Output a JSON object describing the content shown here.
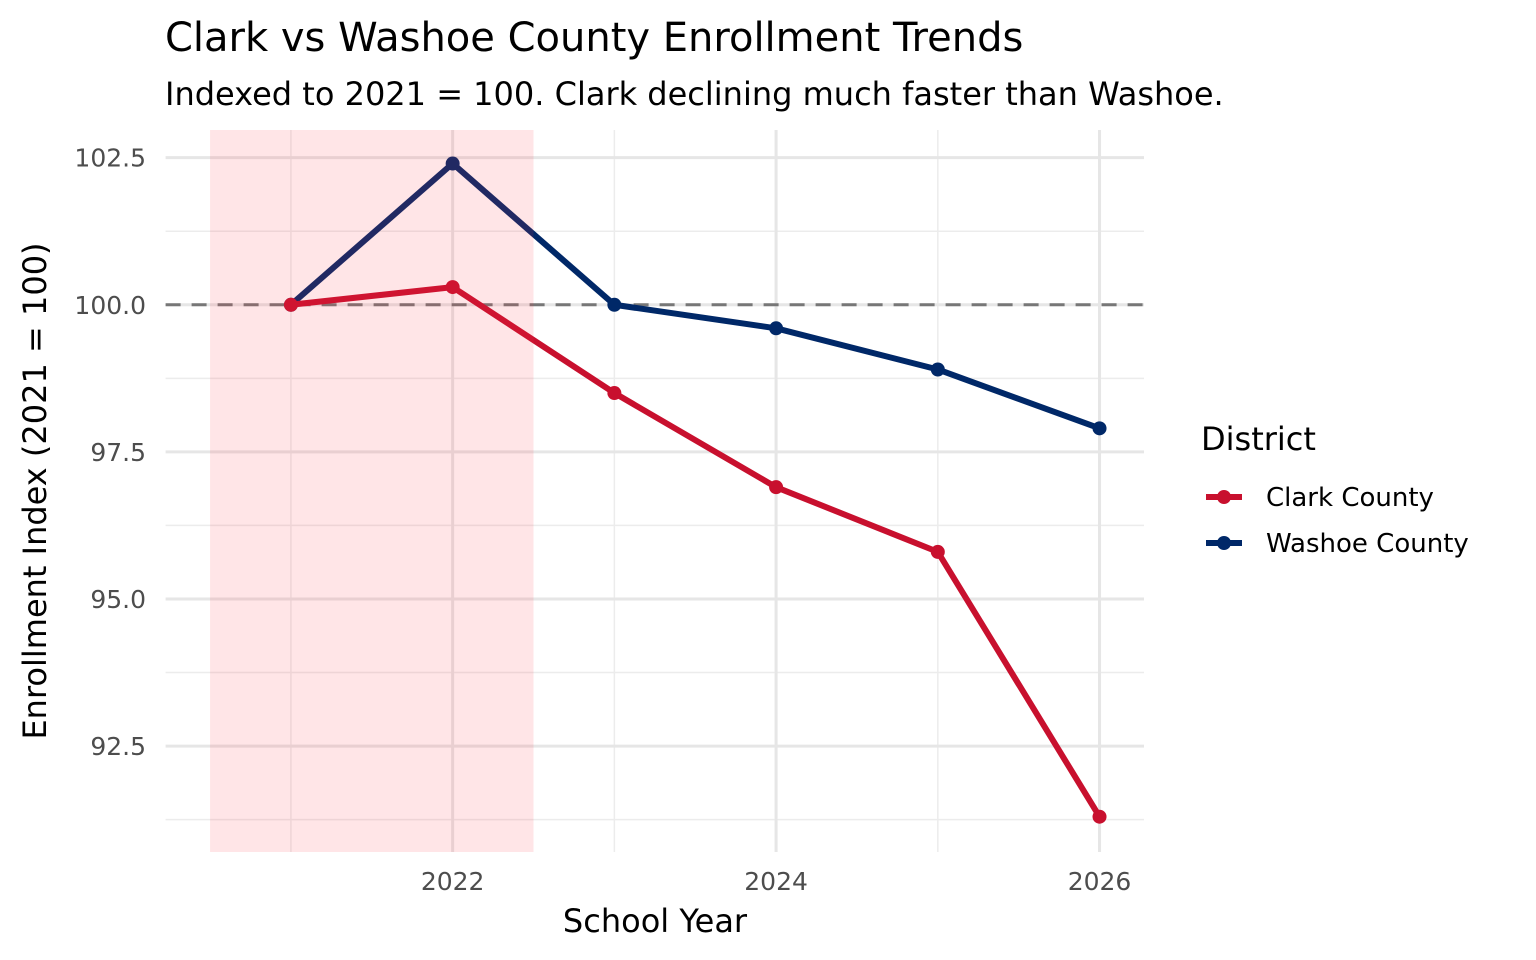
{
  "chart_data": {
    "type": "line",
    "title": "Clark vs Washoe County Enrollment Trends",
    "subtitle": "Indexed to 2021 = 100. Clark declining much faster than Washoe.",
    "xlabel": "School Year",
    "ylabel": "Enrollment Index (2021 = 100)",
    "x": [
      2021,
      2022,
      2023,
      2024,
      2025,
      2026
    ],
    "xticks": [
      2022,
      2024,
      2026
    ],
    "xtick_labels": [
      "2022",
      "2024",
      "2026"
    ],
    "yticks": [
      92.5,
      95.0,
      97.5,
      100.0,
      102.5
    ],
    "ytick_labels": [
      "92.5",
      "95.0",
      "97.5",
      "100.0",
      "102.5"
    ],
    "xlim": [
      2020.225,
      2026.275
    ],
    "ylim": [
      90.7,
      102.97
    ],
    "grid": true,
    "reference_line": {
      "y": 100,
      "style": "dashed",
      "color": "#777777"
    },
    "shaded_region": {
      "x": [
        2020.5,
        2022.5
      ],
      "color": "#ff3344"
    },
    "legend": {
      "title": "District",
      "placement": "right"
    },
    "series": [
      {
        "name": "Clark County",
        "color": "#c8102e",
        "values": [
          100.0,
          100.3,
          98.5,
          96.9,
          95.8,
          91.3
        ]
      },
      {
        "name": "Washoe County",
        "color": "#002868",
        "values": [
          100.0,
          102.4,
          100.0,
          99.6,
          98.9,
          97.9
        ]
      }
    ]
  }
}
